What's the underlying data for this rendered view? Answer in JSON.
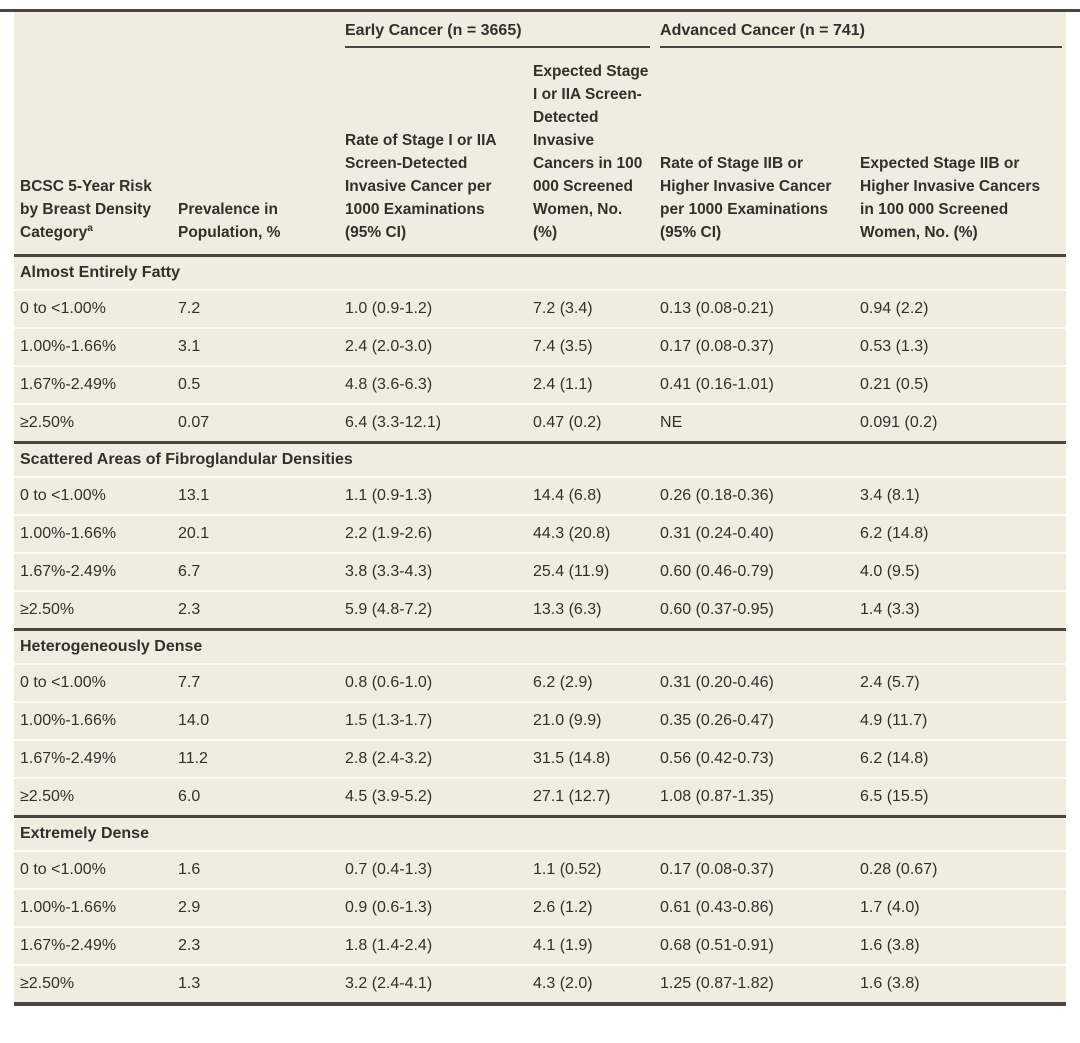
{
  "table": {
    "spanners": {
      "early": "Early Cancer (n = 3665)",
      "advanced": "Advanced Cancer (n = 741)"
    },
    "columns": [
      {
        "label": "BCSC 5-Year Risk by Breast Density Category",
        "sup": "a"
      },
      {
        "label": "Prevalence in Population, %"
      },
      {
        "label": "Rate of Stage I or IIA Screen-Detected Invasive Cancer per 1000 Examinations (95% CI)"
      },
      {
        "label": "Expected Stage I or IIA Screen-Detected Invasive Cancers in 100 000 Screened Women, No. (%)"
      },
      {
        "label": "Rate of Stage IIB or Higher Invasive Cancer per 1000 Examinations (95% CI)"
      },
      {
        "label": "Expected Stage IIB or Higher Invasive Cancers in 100 000 Screened Women, No. (%)"
      }
    ],
    "sections": [
      {
        "title": "Almost Entirely Fatty",
        "rows": [
          [
            "0 to <1.00%",
            "7.2",
            "1.0 (0.9-1.2)",
            "7.2 (3.4)",
            "0.13 (0.08-0.21)",
            "0.94 (2.2)"
          ],
          [
            "1.00%-1.66%",
            "3.1",
            "2.4 (2.0-3.0)",
            "7.4 (3.5)",
            "0.17 (0.08-0.37)",
            "0.53 (1.3)"
          ],
          [
            "1.67%-2.49%",
            "0.5",
            "4.8 (3.6-6.3)",
            "2.4 (1.1)",
            "0.41 (0.16-1.01)",
            "0.21 (0.5)"
          ],
          [
            "≥2.50%",
            "0.07",
            "6.4 (3.3-12.1)",
            "0.47 (0.2)",
            "NE",
            "0.091 (0.2)"
          ]
        ]
      },
      {
        "title": "Scattered Areas of Fibroglandular Densities",
        "rows": [
          [
            "0 to <1.00%",
            "13.1",
            "1.1 (0.9-1.3)",
            "14.4 (6.8)",
            "0.26 (0.18-0.36)",
            "3.4 (8.1)"
          ],
          [
            "1.00%-1.66%",
            "20.1",
            "2.2 (1.9-2.6)",
            "44.3 (20.8)",
            "0.31 (0.24-0.40)",
            "6.2 (14.8)"
          ],
          [
            "1.67%-2.49%",
            "6.7",
            "3.8 (3.3-4.3)",
            "25.4 (11.9)",
            "0.60 (0.46-0.79)",
            "4.0 (9.5)"
          ],
          [
            "≥2.50%",
            "2.3",
            "5.9 (4.8-7.2)",
            "13.3 (6.3)",
            "0.60 (0.37-0.95)",
            "1.4 (3.3)"
          ]
        ]
      },
      {
        "title": "Heterogeneously Dense",
        "rows": [
          [
            "0 to <1.00%",
            "7.7",
            "0.8 (0.6-1.0)",
            "6.2 (2.9)",
            "0.31 (0.20-0.46)",
            "2.4 (5.7)"
          ],
          [
            "1.00%-1.66%",
            "14.0",
            "1.5 (1.3-1.7)",
            "21.0 (9.9)",
            "0.35 (0.26-0.47)",
            "4.9 (11.7)"
          ],
          [
            "1.67%-2.49%",
            "11.2",
            "2.8 (2.4-3.2)",
            "31.5 (14.8)",
            "0.56 (0.42-0.73)",
            "6.2 (14.8)"
          ],
          [
            "≥2.50%",
            "6.0",
            "4.5 (3.9-5.2)",
            "27.1 (12.7)",
            "1.08 (0.87-1.35)",
            "6.5 (15.5)"
          ]
        ]
      },
      {
        "title": "Extremely Dense",
        "rows": [
          [
            "0 to <1.00%",
            "1.6",
            "0.7 (0.4-1.3)",
            "1.1 (0.52)",
            "0.17 (0.08-0.37)",
            "0.28 (0.67)"
          ],
          [
            "1.00%-1.66%",
            "2.9",
            "0.9 (0.6-1.3)",
            "2.6 (1.2)",
            "0.61 (0.43-0.86)",
            "1.7 (4.0)"
          ],
          [
            "1.67%-2.49%",
            "2.3",
            "1.8 (1.4-2.4)",
            "4.1 (1.9)",
            "0.68 (0.51-0.91)",
            "1.6 (3.8)"
          ],
          [
            "≥2.50%",
            "1.3",
            "3.2 (2.4-4.1)",
            "4.3 (2.0)",
            "1.25 (0.87-1.82)",
            "1.6 (3.8)"
          ]
        ]
      }
    ],
    "colors": {
      "table_background": "#f0ede0",
      "heavy_rule": "#4a463f",
      "light_separator": "#fbfaf4",
      "text": "#31302a"
    }
  }
}
